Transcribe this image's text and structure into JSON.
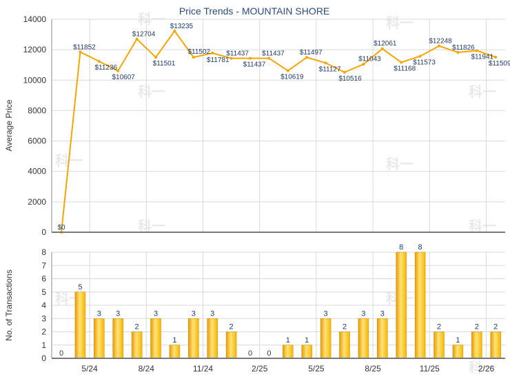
{
  "chart_data": [
    {
      "type": "line",
      "title": "Price Trends - MOUNTAIN SHORE",
      "ylabel": "Average Price",
      "ylim": [
        0,
        14000
      ],
      "yticks": [
        0,
        2000,
        4000,
        6000,
        8000,
        10000,
        12000,
        14000
      ],
      "grid": true,
      "color": "#f5a500",
      "series": [
        {
          "values": [
            0,
            11852,
            11236,
            10607,
            12704,
            11501,
            13235,
            11502,
            11781,
            11437,
            11437,
            11437,
            10619,
            11497,
            11127,
            10516,
            11043,
            12061,
            11168,
            11573,
            12248,
            11826,
            11941,
            11509
          ],
          "labels": [
            "$0",
            "$11852",
            "$11236",
            "$10607",
            "$12704",
            "$11501",
            "$13235",
            "$11502",
            "$11781",
            "$11437",
            "$11437",
            "$11437",
            "$10619",
            "$11497",
            "$11127",
            "$10516",
            "$11043",
            "$12061",
            "$11168",
            "$11573",
            "$12248",
            "$11826",
            "$11941",
            "$11509"
          ]
        }
      ]
    },
    {
      "type": "bar",
      "ylabel": "No. of Transactions",
      "ylim": [
        0,
        8
      ],
      "yticks": [
        0,
        1,
        2,
        3,
        4,
        5,
        6,
        7,
        8
      ],
      "grid": true,
      "color": "#f5b800",
      "values": [
        0,
        5,
        3,
        3,
        2,
        3,
        1,
        3,
        3,
        2,
        0,
        0,
        1,
        1,
        3,
        2,
        3,
        3,
        8,
        8,
        2,
        1,
        2,
        2
      ],
      "xtick_labels": [
        "5/24",
        "8/24",
        "11/24",
        "2/25",
        "5/25",
        "8/25",
        "11/25",
        "2/26"
      ],
      "xtick_positions": [
        2,
        5,
        8,
        11,
        14,
        17,
        20,
        23
      ]
    }
  ],
  "watermark": "科一"
}
